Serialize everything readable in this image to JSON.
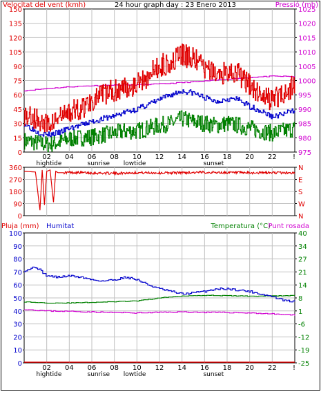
{
  "header": {
    "wind_label": "Velocitat del vent (kmh)",
    "title": "24 hour graph day : 23 Enero 2013",
    "pressure_label": "Pressió (mb)"
  },
  "panel3_labels": {
    "rain": "Pluja (mm)",
    "humidity": "Humitat",
    "temperature": "Temperatura (°C)",
    "dewpoint": "Punt rosada"
  },
  "x_axis": {
    "hour_ticks": [
      "02",
      "04",
      "06",
      "08",
      "10",
      "12",
      "14",
      "16",
      "18",
      "20",
      "22",
      "!"
    ],
    "events_top": [
      {
        "label": "hightide",
        "hour": 2.2
      },
      {
        "label": "sunrise",
        "hour": 6.6
      },
      {
        "label": "lowtide",
        "hour": 9.8
      },
      {
        "label": "sunset",
        "hour": 16.8
      }
    ],
    "events_bottom": [
      {
        "label": "hightide",
        "hour": 2.2
      },
      {
        "label": "sunrise",
        "hour": 6.6
      },
      {
        "label": "lowtide",
        "hour": 9.8
      },
      {
        "label": "sunset",
        "hour": 16.8
      }
    ]
  },
  "colors": {
    "wind_gust": "#e00000",
    "wind_avg": "#0000cc",
    "wind_min": "#008000",
    "pressure": "#d000d0",
    "direction": "#e00000",
    "humidity": "#0000cc",
    "temperature": "#008000",
    "dewpoint": "#d000d0",
    "rain": "#e00000",
    "grid": "#c0c0c0",
    "frame": "#000000"
  },
  "chart_data": [
    {
      "type": "line",
      "title": "24 hour graph day : 23 Enero 2013",
      "x_unit": "hour",
      "xlim": [
        0,
        24
      ],
      "y_left": {
        "label": "Velocitat del vent (kmh)",
        "ylim": [
          0,
          150
        ],
        "ticks": [
          0,
          15,
          30,
          45,
          60,
          75,
          90,
          105,
          120,
          135,
          150
        ]
      },
      "y_right": {
        "label": "Pressió (mb)",
        "ylim": [
          975,
          1025
        ],
        "ticks": [
          975,
          980,
          985,
          990,
          995,
          1000,
          1005,
          1010,
          1015,
          1020,
          1025
        ]
      },
      "series": [
        {
          "key": "gust",
          "axis": "left",
          "x": [
            0,
            1,
            2,
            3,
            4,
            5,
            6,
            7,
            8,
            9,
            10,
            11,
            12,
            13,
            14,
            15,
            16,
            17,
            18,
            19,
            20,
            21,
            22,
            23,
            24
          ],
          "values": [
            40,
            35,
            28,
            35,
            42,
            45,
            55,
            60,
            65,
            68,
            72,
            80,
            90,
            95,
            102,
            98,
            88,
            80,
            85,
            82,
            70,
            60,
            55,
            62,
            70
          ]
        },
        {
          "key": "average",
          "axis": "left",
          "x": [
            0,
            1,
            2,
            3,
            4,
            5,
            6,
            7,
            8,
            9,
            10,
            11,
            12,
            13,
            14,
            15,
            16,
            17,
            18,
            19,
            20,
            21,
            22,
            23,
            24
          ],
          "values": [
            30,
            22,
            18,
            20,
            25,
            28,
            32,
            35,
            38,
            42,
            45,
            50,
            55,
            60,
            64,
            62,
            57,
            53,
            56,
            55,
            48,
            43,
            37,
            40,
            44
          ]
        },
        {
          "key": "minimum",
          "axis": "left",
          "x": [
            0,
            1,
            2,
            3,
            4,
            5,
            6,
            7,
            8,
            9,
            10,
            11,
            12,
            13,
            14,
            15,
            16,
            17,
            18,
            19,
            20,
            21,
            22,
            23,
            24
          ],
          "values": [
            12,
            10,
            8,
            10,
            14,
            15,
            16,
            18,
            20,
            22,
            22,
            25,
            28,
            30,
            35,
            32,
            30,
            28,
            30,
            28,
            25,
            22,
            20,
            22,
            25
          ]
        },
        {
          "key": "pressure",
          "axis": "right",
          "x": [
            0,
            2,
            4,
            6,
            8,
            10,
            12,
            14,
            16,
            18,
            20,
            22,
            24
          ],
          "values": [
            996.5,
            997.2,
            997.8,
            998.2,
            998.4,
            998.5,
            998.8,
            999.3,
            999.8,
            1000.5,
            1001.1,
            1001.5,
            1001.4
          ]
        }
      ]
    },
    {
      "type": "line",
      "x_unit": "hour",
      "xlim": [
        0,
        24
      ],
      "y_left": {
        "ylim": [
          0,
          360
        ],
        "ticks": [
          0,
          90,
          180,
          270,
          360
        ]
      },
      "y_right": {
        "ticks": [
          "N",
          "W",
          "S",
          "E",
          "N"
        ]
      },
      "series": [
        {
          "key": "direction",
          "x": [
            0,
            1,
            1.4,
            1.6,
            1.8,
            2.0,
            2.3,
            2.6,
            2.8,
            3.0,
            3.5,
            4,
            6,
            8,
            10,
            12,
            14,
            16,
            18,
            20,
            22,
            24
          ],
          "values": [
            330,
            325,
            40,
            340,
            80,
            330,
            340,
            100,
            330,
            320,
            320,
            322,
            318,
            315,
            320,
            318,
            320,
            322,
            320,
            318,
            320,
            318
          ]
        }
      ]
    },
    {
      "type": "line",
      "x_unit": "hour",
      "xlim": [
        0,
        24
      ],
      "y_left": {
        "label": "Pluja (mm) / Humitat",
        "ylim": [
          0,
          100
        ],
        "ticks": [
          0,
          10,
          20,
          30,
          40,
          50,
          60,
          70,
          80,
          90,
          100
        ]
      },
      "y_right": {
        "label": "Temperatura (°C) / Punt rosada",
        "ylim": [
          -25,
          40
        ],
        "ticks": [
          -25,
          -19,
          -12,
          -6,
          1,
          8,
          14,
          21,
          27,
          34,
          40
        ]
      },
      "series": [
        {
          "key": "humidity",
          "axis": "left",
          "x": [
            0,
            1,
            2,
            3,
            4,
            5,
            6,
            7,
            8,
            9,
            10,
            11,
            12,
            13,
            14,
            15,
            16,
            17,
            18,
            19,
            20,
            21,
            22,
            23,
            24
          ],
          "values": [
            71,
            74,
            67,
            66,
            67,
            66,
            64,
            63,
            64,
            66,
            64,
            60,
            57,
            55,
            53,
            54,
            55,
            57,
            57,
            56,
            55,
            53,
            51,
            48,
            47
          ]
        },
        {
          "key": "rain",
          "axis": "left",
          "x": [
            0,
            24
          ],
          "values": [
            0,
            0
          ]
        },
        {
          "key": "temperature",
          "axis": "right",
          "x": [
            0,
            2,
            4,
            6,
            8,
            10,
            12,
            14,
            16,
            18,
            20,
            22,
            24
          ],
          "values": [
            5.5,
            5.0,
            5.0,
            5.3,
            5.6,
            6.0,
            7.5,
            8.5,
            8.8,
            8.6,
            8.4,
            8.5,
            8.7
          ]
        },
        {
          "key": "dewpoint",
          "axis": "right",
          "x": [
            0,
            2,
            4,
            6,
            8,
            10,
            12,
            14,
            16,
            18,
            20,
            22,
            24
          ],
          "values": [
            1.8,
            1.0,
            0.8,
            0.5,
            0.2,
            0.0,
            0.3,
            0.5,
            0.3,
            0.2,
            0.0,
            -0.5,
            -1.2
          ]
        }
      ]
    }
  ]
}
